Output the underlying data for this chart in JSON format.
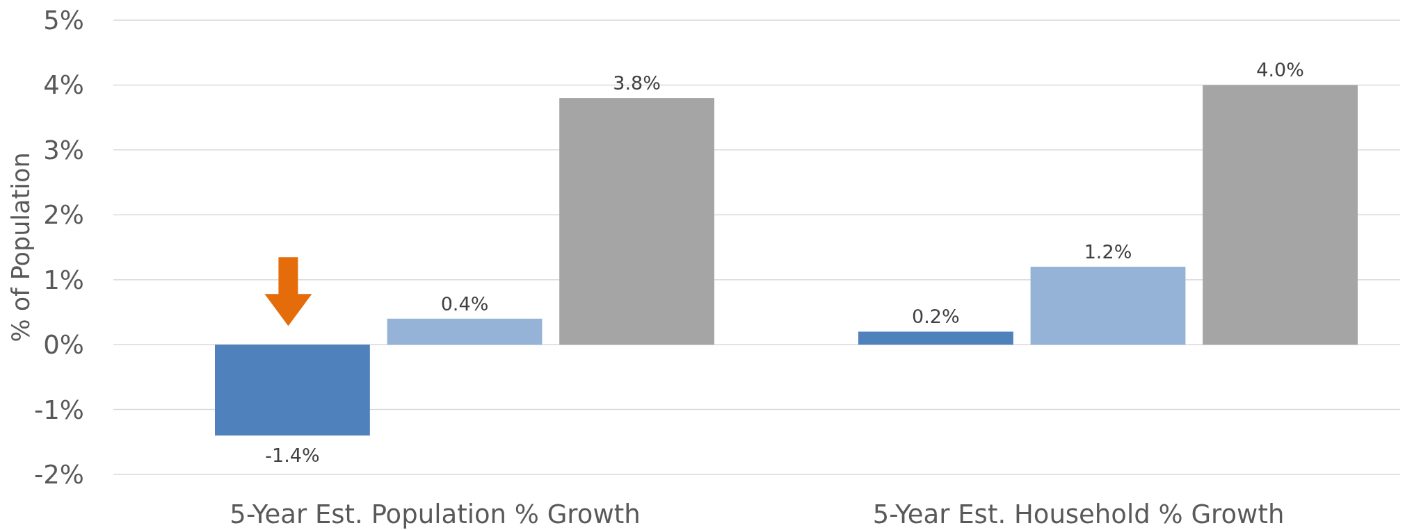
{
  "chart_data": {
    "type": "bar",
    "ylabel": "% of Population",
    "categories": [
      "5-Year Est. Population % Growth",
      "5-Year Est. Household % Growth"
    ],
    "series": [
      {
        "color": "#4f81bd",
        "values": [
          -1.4,
          0.2
        ],
        "value_labels": [
          "-1.4%",
          "0.2%"
        ]
      },
      {
        "color": "#95b3d7",
        "values": [
          0.4,
          1.2
        ],
        "value_labels": [
          "0.4%",
          "1.2%"
        ]
      },
      {
        "color": "#a5a5a5",
        "values": [
          3.8,
          4.0
        ],
        "value_labels": [
          "3.8%",
          "4.0%"
        ]
      }
    ],
    "ylim": [
      -2,
      5
    ],
    "yticks": [
      {
        "value": -2,
        "label": "-2%"
      },
      {
        "value": -1,
        "label": "-1%"
      },
      {
        "value": 0,
        "label": "0%"
      },
      {
        "value": 1,
        "label": "1%"
      },
      {
        "value": 2,
        "label": "2%"
      },
      {
        "value": 3,
        "label": "3%"
      },
      {
        "value": 4,
        "label": "4%"
      },
      {
        "value": 5,
        "label": "5%"
      }
    ],
    "grid": "y"
  }
}
